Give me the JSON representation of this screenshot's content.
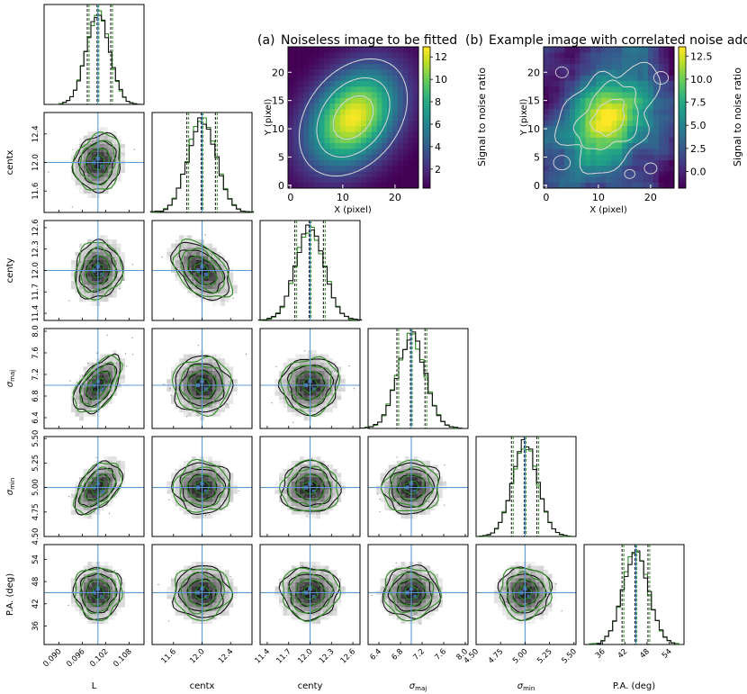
{
  "figure": {
    "parameter_labels": [
      "L",
      "centx",
      "centy",
      "σmaj",
      "σmin",
      "P.A. (deg)"
    ],
    "parameter_axis_labels": {
      "x": [
        "L",
        "centx",
        "centy",
        "σ_maj",
        "σ_min",
        "P.A. (deg)"
      ],
      "y": [
        "",
        "centx",
        "centy",
        "σ_maj",
        "σ_min",
        "P.A. (deg)"
      ]
    },
    "colors": {
      "truth_line": "#5b9bd5",
      "chain_a": "#111111",
      "chain_b": "#2e8b22",
      "hist_dark": "#000000"
    }
  },
  "chart_data": [
    {
      "type": "corner",
      "parameters": [
        {
          "name": "L",
          "truth": 0.1,
          "ticks": [
            "0.090",
            "0.096",
            "0.102",
            "0.108"
          ],
          "tick_values": [
            0.09,
            0.096,
            0.102,
            0.108
          ],
          "range": [
            0.0862,
            0.1118
          ],
          "q16": 0.0975,
          "q84": 0.1035
        },
        {
          "name": "centx",
          "truth": 12.0,
          "ticks": [
            "11.6",
            "12.0",
            "12.4"
          ],
          "tick_values": [
            11.6,
            12.0,
            12.4
          ],
          "range": [
            11.3,
            12.7
          ],
          "q16": 11.8,
          "q84": 12.2
        },
        {
          "name": "centy",
          "truth": 12.0,
          "ticks": [
            "11.4",
            "11.7",
            "12.0",
            "12.3",
            "12.6"
          ],
          "tick_values": [
            11.4,
            11.7,
            12.0,
            12.3,
            12.6
          ],
          "range": [
            11.3,
            12.7
          ],
          "q16": 11.8,
          "q84": 12.2
        },
        {
          "name": "σ_maj",
          "truth": 7.0,
          "ticks": [
            "6.4",
            "6.8",
            "7.2",
            "7.6",
            "8.0"
          ],
          "tick_values": [
            6.4,
            6.8,
            7.2,
            7.6,
            8.0
          ],
          "range": [
            6.2,
            8.05
          ],
          "q16": 6.75,
          "q84": 7.27
        },
        {
          "name": "σ_min",
          "truth": 5.0,
          "ticks": [
            "4.50",
            "4.75",
            "5.00",
            "5.25",
            "5.50"
          ],
          "tick_values": [
            4.5,
            4.75,
            5.0,
            5.25,
            5.5
          ],
          "range": [
            4.5,
            5.52
          ],
          "q16": 4.87,
          "q84": 5.13
        },
        {
          "name": "P.A. (deg)",
          "truth": 45,
          "ticks": [
            "36",
            "42",
            "48",
            "54"
          ],
          "tick_values": [
            36,
            42,
            48,
            54
          ],
          "range": [
            31,
            58
          ],
          "q16": 41.5,
          "q84": 48.5
        }
      ],
      "y_tick_labels": {
        "centx": [
          "11.6",
          "12.0",
          "12.4"
        ],
        "centy": [
          "11.4",
          "11.7",
          "12.0",
          "12.3",
          "12.6"
        ],
        "σ_maj": [
          "6.4",
          "6.8",
          "7.2",
          "7.6",
          "8.0"
        ],
        "σ_min": [
          "4.50",
          "4.75",
          "5.00",
          "5.25",
          "5.50"
        ],
        "P.A. (deg)": [
          "36",
          "42",
          "48",
          "54"
        ]
      },
      "y_tick_values": {
        "centx": [
          11.6,
          12.0,
          12.4
        ],
        "centy": [
          11.4,
          11.7,
          12.0,
          12.3,
          12.6
        ],
        "σ_maj": [
          6.4,
          6.8,
          7.2,
          7.6,
          8.0
        ],
        "σ_min": [
          4.5,
          4.75,
          5.0,
          5.25,
          5.5
        ],
        "P.A. (deg)": [
          36,
          42,
          48,
          54
        ]
      },
      "correlations": [
        [
          0,
          0,
          0,
          0,
          0,
          0
        ],
        [
          0.15,
          0,
          0,
          0,
          0,
          0
        ],
        [
          0.1,
          -0.45,
          0,
          0,
          0,
          0
        ],
        [
          0.55,
          0.0,
          0.05,
          0,
          0,
          0
        ],
        [
          0.5,
          0.0,
          0.0,
          0.05,
          0,
          0
        ],
        [
          0.0,
          0.0,
          0.0,
          0.0,
          0.0,
          0
        ]
      ]
    },
    {
      "type": "heatmap",
      "label": "(a)",
      "title": "Noiseless image to be fitted",
      "xlabel": "X (pixel)",
      "ylabel": "Y (pixel)",
      "x_ticks": [
        "0",
        "10",
        "20"
      ],
      "x_tick_values": [
        0,
        10,
        20
      ],
      "y_ticks": [
        "0",
        "5",
        "10",
        "15",
        "20"
      ],
      "y_tick_values": [
        0,
        5,
        10,
        15,
        20
      ],
      "grid_size": 25,
      "center": [
        12,
        12
      ],
      "sigma_major": 7.0,
      "sigma_minor": 5.0,
      "position_angle_deg": 45,
      "peak": 12.8,
      "colorbar_label": "Signal to noise ratio",
      "colorbar_ticks": [
        "2",
        "4",
        "6",
        "8",
        "10",
        "12"
      ],
      "colorbar_tick_values": [
        2,
        4,
        6,
        8,
        10,
        12
      ],
      "colorbar_range": [
        0.3,
        12.9
      ],
      "colormap": "viridis"
    },
    {
      "type": "heatmap",
      "label": "(b)",
      "title": "Example image with correlated noise added",
      "xlabel": "X (pixel)",
      "ylabel": "Y (pixel)",
      "x_ticks": [
        "0",
        "10",
        "20"
      ],
      "x_tick_values": [
        0,
        10,
        20
      ],
      "y_ticks": [
        "0",
        "5",
        "10",
        "15",
        "20"
      ],
      "y_tick_values": [
        0,
        5,
        10,
        15,
        20
      ],
      "grid_size": 25,
      "colorbar_label": "Signal to noise ratio",
      "colorbar_ticks": [
        "0.0",
        "2.5",
        "5.0",
        "7.5",
        "10.0",
        "12.5"
      ],
      "colorbar_tick_values": [
        0.0,
        2.5,
        5.0,
        7.5,
        10.0,
        12.5
      ],
      "colorbar_range": [
        -1.8,
        13.5
      ],
      "colormap": "viridis"
    }
  ]
}
